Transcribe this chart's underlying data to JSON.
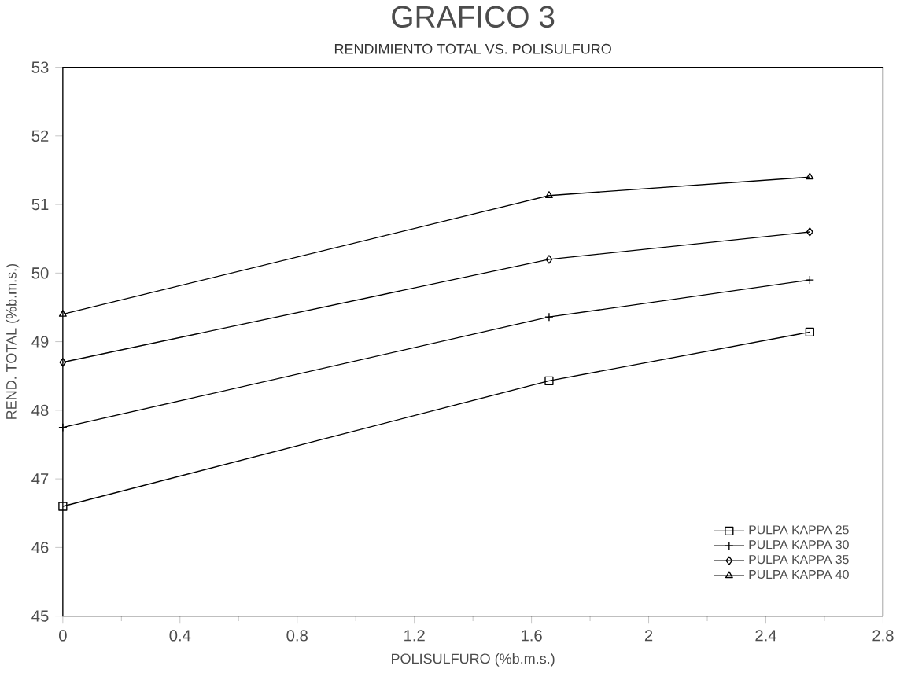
{
  "chart_data": {
    "type": "line",
    "title": "GRAFICO    3",
    "subtitle": "RENDIMIENTO TOTAL VS. POLISULFURO",
    "xlabel": "POLISULFURO (%b.m.s.)",
    "ylabel": "REND. TOTAL (%b.m.s.)",
    "x": [
      0,
      1.66,
      2.55
    ],
    "series": [
      {
        "name": "PULPA KAPPA 25",
        "color": "#000000",
        "marker": "square",
        "values": [
          46.6,
          48.43,
          49.14
        ]
      },
      {
        "name": "PULPA KAPPA 30",
        "color": "#000000",
        "marker": "cross",
        "values": [
          47.75,
          49.36,
          49.9
        ]
      },
      {
        "name": "PULPA KAPPA 35",
        "color": "#000000",
        "marker": "diamond",
        "values": [
          48.7,
          50.2,
          50.6
        ]
      },
      {
        "name": "PULPA KAPPA 40",
        "color": "#000000",
        "marker": "triangle",
        "values": [
          49.4,
          51.13,
          51.4
        ]
      }
    ],
    "xlim": [
      0,
      2.8
    ],
    "ylim": [
      45,
      53
    ],
    "xticks": [
      0,
      0.4,
      0.8,
      1.2,
      1.6,
      2,
      2.4,
      2.8
    ],
    "yticks": [
      45,
      46,
      47,
      48,
      49,
      50,
      51,
      52,
      53
    ],
    "grid": false,
    "legend": "bottom right",
    "line_style": "solid"
  }
}
